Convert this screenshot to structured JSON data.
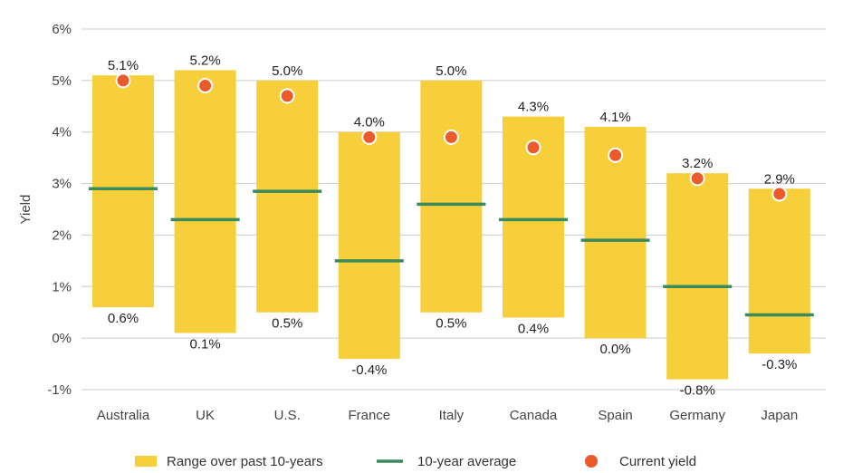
{
  "chart_data": {
    "type": "bar",
    "ylabel": "Yield",
    "ylim": [
      -1,
      6
    ],
    "y_ticks": [
      -1,
      0,
      1,
      2,
      3,
      4,
      5,
      6
    ],
    "y_tick_suffix": "%",
    "grid": true,
    "legend_placement": "bottom",
    "categories": [
      "Australia",
      "UK",
      "U.S.",
      "France",
      "Italy",
      "Canada",
      "Spain",
      "Germany",
      "Japan"
    ],
    "series": [
      {
        "name": "Range over past 10-years",
        "kind": "range",
        "color": "#F6CF3A",
        "high": [
          5.1,
          5.2,
          5.0,
          4.0,
          5.0,
          4.3,
          4.1,
          3.2,
          2.9
        ],
        "low": [
          0.6,
          0.1,
          0.5,
          -0.4,
          0.5,
          0.4,
          0.0,
          -0.8,
          -0.3
        ],
        "high_labels": [
          "5.1%",
          "5.2%",
          "5.0%",
          "4.0%",
          "5.0%",
          "4.3%",
          "4.1%",
          "3.2%",
          "2.9%"
        ],
        "low_labels": [
          "0.6%",
          "0.1%",
          "0.5%",
          "-0.4%",
          "0.5%",
          "0.4%",
          "0.0%",
          "-0.8%",
          "-0.3%"
        ]
      },
      {
        "name": "10-year average",
        "kind": "dash",
        "color": "#3A8A5C",
        "values": [
          2.9,
          2.3,
          2.85,
          1.5,
          2.6,
          2.3,
          1.9,
          1.0,
          0.45
        ]
      },
      {
        "name": "Current yield",
        "kind": "dot",
        "color": "#EA5A2A",
        "values": [
          5.0,
          4.9,
          4.7,
          3.9,
          3.9,
          3.7,
          3.55,
          3.1,
          2.8
        ]
      }
    ]
  }
}
